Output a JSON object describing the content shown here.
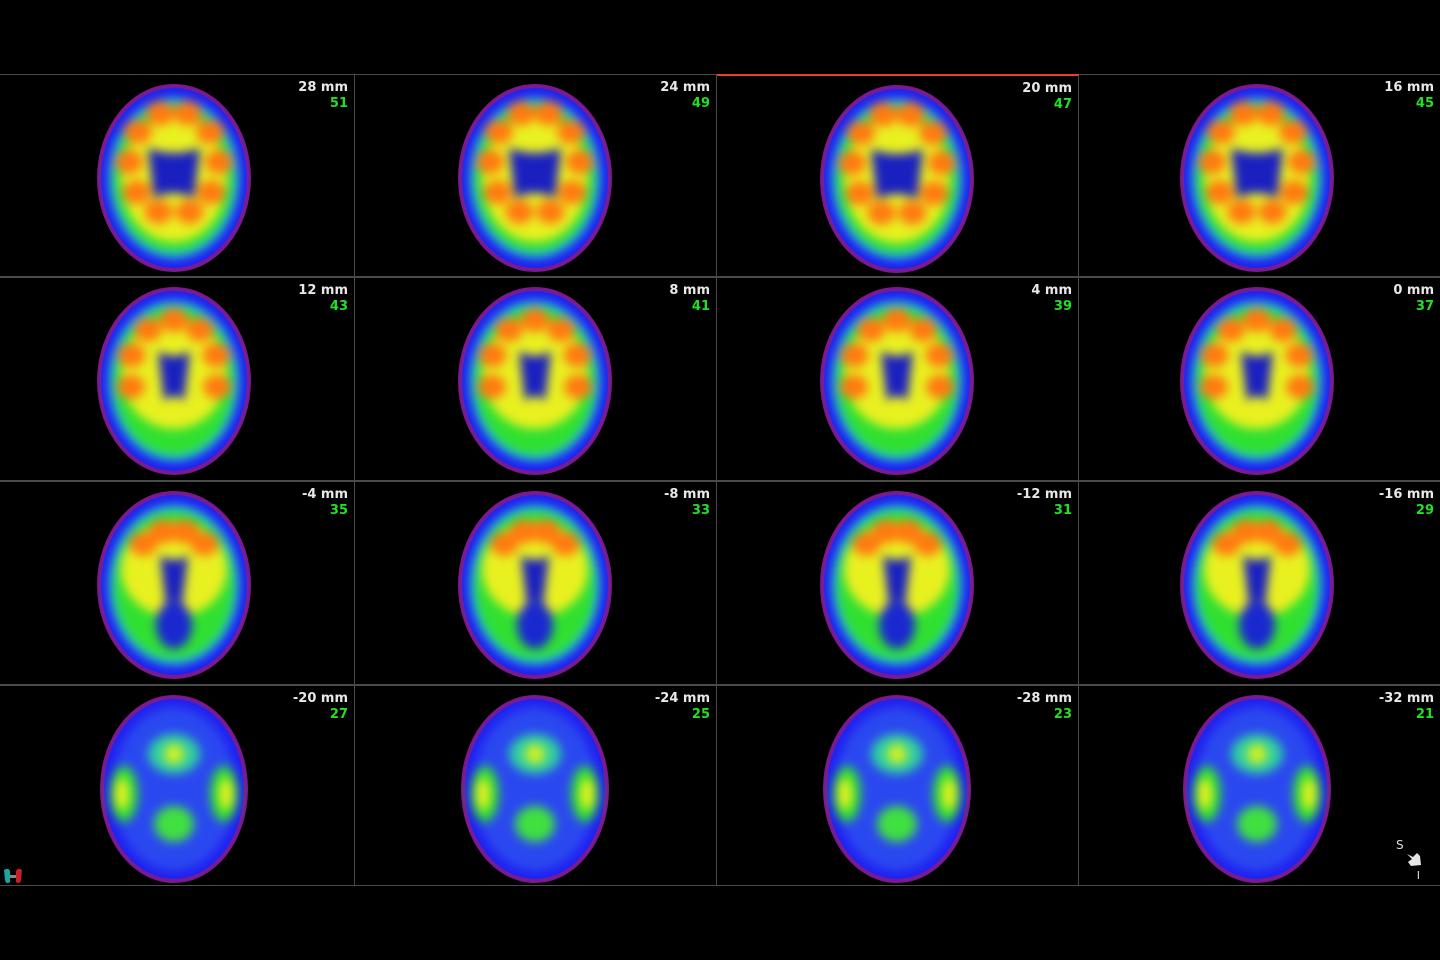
{
  "viewer": {
    "active_viewport": 2,
    "colors": {
      "accent_active": "#e8402a",
      "slice_mm": "#e8e8e8",
      "slice_index": "#22e022",
      "divider": "#4a4a4a"
    },
    "colormap": "rainbow",
    "slices": [
      {
        "mm": "28 mm",
        "index": "51"
      },
      {
        "mm": "24 mm",
        "index": "49"
      },
      {
        "mm": "20 mm",
        "index": "47"
      },
      {
        "mm": "16 mm",
        "index": "45"
      },
      {
        "mm": "12 mm",
        "index": "43"
      },
      {
        "mm": "8 mm",
        "index": "41"
      },
      {
        "mm": "4 mm",
        "index": "39"
      },
      {
        "mm": "0 mm",
        "index": "37"
      },
      {
        "mm": "-4 mm",
        "index": "35"
      },
      {
        "mm": "-8 mm",
        "index": "33"
      },
      {
        "mm": "-12 mm",
        "index": "31"
      },
      {
        "mm": "-16 mm",
        "index": "29"
      },
      {
        "mm": "-20 mm",
        "index": "27"
      },
      {
        "mm": "-24 mm",
        "index": "25"
      },
      {
        "mm": "-28 mm",
        "index": "23"
      },
      {
        "mm": "-32 mm",
        "index": "21"
      }
    ],
    "orientation": {
      "top": "S",
      "bottom": "I",
      "icon": "orientation-arrow-icon"
    },
    "logo_icon": "app-logo-icon"
  }
}
